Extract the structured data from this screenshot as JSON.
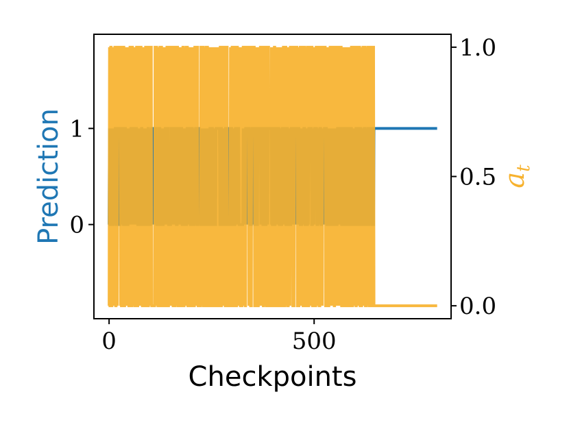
{
  "chart_data": {
    "type": "line",
    "x": {
      "label": "Checkpoints",
      "lim": [
        -37,
        834
      ],
      "ticks": [
        0,
        500
      ],
      "tick_labels": [
        "0",
        "500"
      ]
    },
    "y_left": {
      "label": "Prediction",
      "color": "#1f77b4",
      "lim": [
        -0.98,
        1.98
      ],
      "ticks": [
        0,
        1
      ],
      "tick_labels": [
        "0",
        "1"
      ]
    },
    "y_right": {
      "label": "a",
      "label_subscript": "t",
      "color": "#f7b22e",
      "lim": [
        -0.05,
        1.05
      ],
      "ticks": [
        0.0,
        0.5,
        1.0
      ],
      "tick_labels": [
        "0.0",
        "0.5",
        "1.0"
      ]
    },
    "grid": false,
    "series": [
      {
        "axis": "left",
        "color": "#1f77b4",
        "x_range": [
          0,
          800
        ],
        "switch_until": 645,
        "constant_after": 1,
        "description_values": [
          0,
          1
        ]
      },
      {
        "axis": "right",
        "color": "#f7b22e",
        "x_range": [
          0,
          800
        ],
        "switch_until": 645,
        "constant_after": 0.0,
        "description_values": [
          0.0,
          1.0
        ]
      }
    ]
  }
}
